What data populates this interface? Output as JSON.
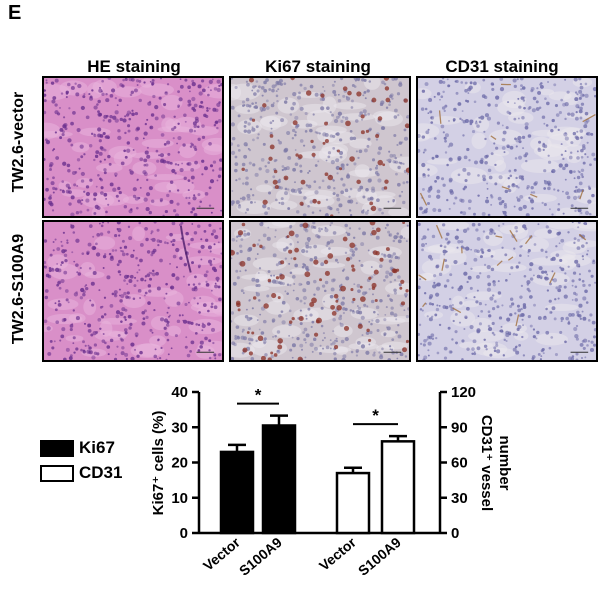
{
  "panel_letter": "E",
  "columns": [
    "HE staining",
    "Ki67 staining",
    "CD31 staining"
  ],
  "rows": [
    "TW2.6-vector",
    "TW2.6-S100A9"
  ],
  "legend": [
    {
      "label": "Ki67",
      "fill": "#000000"
    },
    {
      "label": "CD31",
      "fill": "#ffffff"
    }
  ],
  "colors": {
    "he_background": "#d98fc8",
    "he_nuclei": "#6a2f8e",
    "ki67_background": "#cfc6cf",
    "ki67_positive": "#8a2f25",
    "ki67_nuclei": "#7d79a6",
    "cd31_background": "#d3d0e5",
    "cd31_nuclei": "#6c6aa8",
    "cd31_vessel": "#a2703d"
  },
  "chart_data": {
    "type": "bar",
    "left_axis": {
      "label": "Ki67⁺ cells (%)",
      "ylim": [
        0,
        40
      ],
      "ticks": [
        "0",
        "10",
        "20",
        "30",
        "40"
      ]
    },
    "right_axis": {
      "label_line1": "CD31⁺ vessel",
      "label_line2": "number",
      "ylim": [
        0,
        120
      ],
      "ticks": [
        "0",
        "30",
        "60",
        "90",
        "120"
      ]
    },
    "series": [
      {
        "name": "Ki67",
        "axis": "left",
        "fill": "#000000",
        "categories": [
          "Vector",
          "S100A9"
        ],
        "values": [
          23,
          30.5
        ],
        "errors": [
          2,
          2.8
        ]
      },
      {
        "name": "CD31",
        "axis": "right",
        "fill": "#ffffff",
        "categories": [
          "Vector",
          "S100A9"
        ],
        "values": [
          51,
          78
        ],
        "errors": [
          4.5,
          4.5
        ]
      }
    ],
    "significance": [
      {
        "series": "Ki67",
        "label": "*"
      },
      {
        "series": "CD31",
        "label": "*"
      }
    ]
  }
}
